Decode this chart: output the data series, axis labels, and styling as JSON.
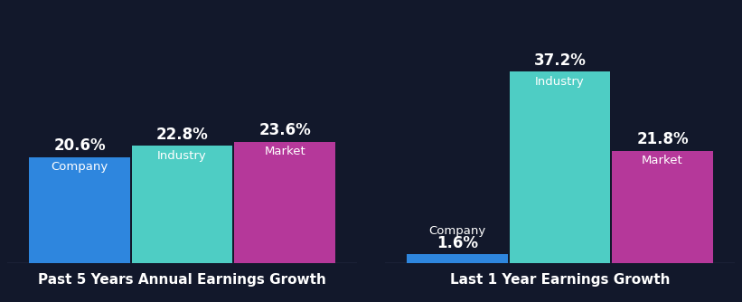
{
  "background_color": "#12182b",
  "groups": [
    {
      "title": "Past 5 Years Annual Earnings Growth",
      "bars": [
        {
          "label": "Company",
          "value": 20.6,
          "color": "#2e86de"
        },
        {
          "label": "Industry",
          "value": 22.8,
          "color": "#4ecdc4"
        },
        {
          "label": "Market",
          "value": 23.6,
          "color": "#b5389a"
        }
      ]
    },
    {
      "title": "Last 1 Year Earnings Growth",
      "bars": [
        {
          "label": "Company",
          "value": 1.6,
          "color": "#2e86de"
        },
        {
          "label": "Industry",
          "value": 37.2,
          "color": "#4ecdc4"
        },
        {
          "label": "Market",
          "value": 21.8,
          "color": "#b5389a"
        }
      ]
    }
  ],
  "text_color": "#ffffff",
  "label_fontsize": 9.5,
  "value_fontsize": 12,
  "title_fontsize": 11,
  "bar_width": 0.28,
  "bar_gap": 0.005,
  "ylim_left": 40,
  "ylim_right": 40
}
